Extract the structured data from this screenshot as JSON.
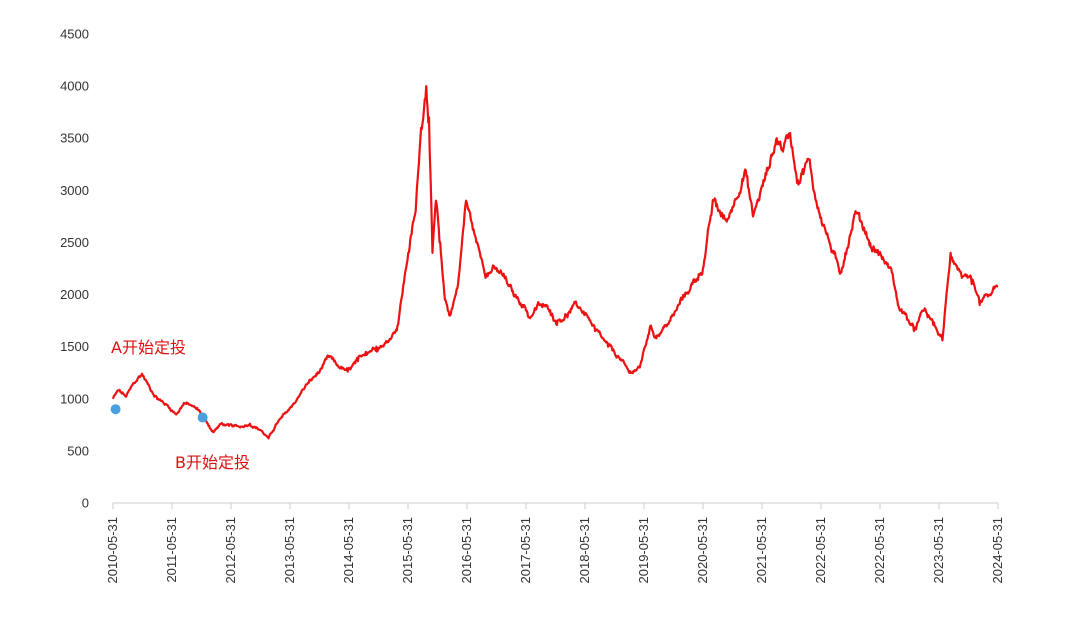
{
  "colors": {
    "line": "#ee1111",
    "marker": "#4a9fe0",
    "annotation": "#dd1111",
    "axis": "#cccccc",
    "tick_text": "#333333"
  },
  "chart_data": {
    "type": "line",
    "title": "",
    "xlabel": "",
    "ylabel": "",
    "ylim": [
      0,
      4500
    ],
    "y_ticks": [
      0,
      500,
      1000,
      1500,
      2000,
      2500,
      3000,
      3500,
      4000,
      4500
    ],
    "x_ticks": [
      "2010-05-31",
      "2011-05-31",
      "2012-05-31",
      "2013-05-31",
      "2014-05-31",
      "2015-05-31",
      "2016-05-31",
      "2017-05-31",
      "2018-05-31",
      "2019-05-31",
      "2020-05-31",
      "2021-05-31",
      "2022-05-31",
      "2022-05-31",
      "2023-05-31",
      "2024-05-31"
    ],
    "grid": false,
    "legend": "none",
    "series": [
      {
        "x": [
          "2010-05-31",
          "2010-06-30",
          "2010-08-15",
          "2010-09-30",
          "2010-11-15",
          "2010-12-31",
          "2011-02-15",
          "2011-04-15",
          "2011-05-31",
          "2011-07-15",
          "2011-08-31",
          "2011-10-15",
          "2011-11-30",
          "2011-12-31",
          "2012-02-15",
          "2012-03-31",
          "2012-05-31",
          "2012-07-31",
          "2012-09-30",
          "2012-11-15",
          "2012-12-31",
          "2013-02-28",
          "2013-04-30",
          "2013-06-15",
          "2013-08-31",
          "2013-10-31",
          "2013-12-15",
          "2014-02-15",
          "2014-04-15",
          "2014-05-31",
          "2014-07-31",
          "2014-09-30",
          "2014-11-30",
          "2015-01-31",
          "2015-03-15",
          "2015-04-15",
          "2015-05-15",
          "2015-05-31",
          "2015-06-20",
          "2015-07-10",
          "2015-07-31",
          "2015-08-31",
          "2015-09-30",
          "2015-11-15",
          "2015-12-31",
          "2016-01-31",
          "2016-02-29",
          "2016-04-30",
          "2016-05-31",
          "2016-07-31",
          "2016-09-30",
          "2016-11-30",
          "2016-12-31",
          "2017-02-28",
          "2017-04-30",
          "2017-05-31",
          "2017-07-31",
          "2017-09-30",
          "2017-11-30",
          "2018-01-15",
          "2018-03-31",
          "2018-05-31",
          "2018-07-31",
          "2018-09-30",
          "2018-11-30",
          "2018-12-31",
          "2019-02-28",
          "2019-04-15",
          "2019-05-31",
          "2019-07-31",
          "2019-09-30",
          "2019-11-30",
          "2019-12-31",
          "2020-02-15",
          "2020-03-31",
          "2020-05-31",
          "2020-07-15",
          "2020-09-30",
          "2020-11-30",
          "2020-12-31",
          "2021-02-15",
          "2021-03-31",
          "2021-05-31",
          "2021-07-15",
          "2021-09-30",
          "2021-11-30",
          "2021-12-31",
          "2022-02-28",
          "2022-04-30",
          "2022-05-31",
          "2022-07-15",
          "2022-09-30",
          "2022-10-31",
          "2022-12-31",
          "2023-01-31",
          "2023-03-31",
          "2023-05-31",
          "2023-07-15",
          "2023-08-31",
          "2023-10-31",
          "2023-12-31",
          "2024-02-15",
          "2024-04-15",
          "2024-05-31"
        ],
        "y": [
          1000,
          1080,
          1020,
          1150,
          1240,
          1100,
          1000,
          930,
          850,
          960,
          930,
          880,
          760,
          680,
          760,
          740,
          730,
          760,
          700,
          620,
          760,
          870,
          1000,
          1120,
          1250,
          1400,
          1320,
          1260,
          1360,
          1450,
          1500,
          1540,
          1700,
          2400,
          2800,
          3600,
          4000,
          3700,
          2400,
          2900,
          2500,
          1950,
          1800,
          2100,
          2900,
          2700,
          2500,
          2200,
          2250,
          2180,
          2000,
          1900,
          1780,
          1900,
          1850,
          1750,
          1800,
          1900,
          1800,
          1650,
          1500,
          1400,
          1250,
          1300,
          1700,
          1600,
          1700,
          1800,
          1950,
          2100,
          2250,
          2900,
          2800,
          2700,
          2900,
          3200,
          2750,
          3150,
          3500,
          3400,
          3550,
          3100,
          3300,
          2900,
          2500,
          2200,
          2400,
          2800,
          2600,
          2450,
          2400,
          2200,
          1900,
          1750,
          1650,
          1850,
          1700,
          1560,
          2400,
          2200,
          2100,
          1900,
          2000,
          2080
        ]
      }
    ],
    "points": [
      {
        "x": "2010-06-15",
        "y": 900
      },
      {
        "x": "2011-10-31",
        "y": 820
      }
    ],
    "annotations": [
      {
        "text": "A开始定投"
      },
      {
        "text": "B开始定投"
      }
    ]
  }
}
